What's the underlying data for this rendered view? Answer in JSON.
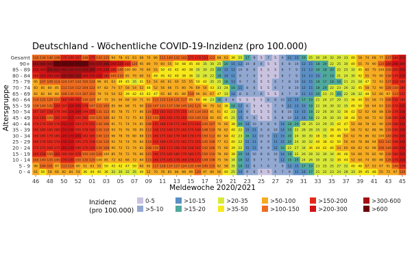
{
  "chart_data": {
    "type": "heatmap",
    "title": "Deutschland - Wöchentliche COVID-19-Inzidenz (pro 100.000)",
    "xlabel": "Meldewoche 2020/2021",
    "ylabel": "Altersgruppe",
    "rows": [
      "Gesamt",
      "90+",
      "85 - 89",
      "80 - 84",
      "75 - 79",
      "70 - 74",
      "65 - 69",
      "60 - 64",
      "55 - 59",
      "50 - 54",
      "45 - 49",
      "40 - 44",
      "35 - 39",
      "30 - 34",
      "25 - 29",
      "20 - 24",
      "15 - 19",
      "10 - 14",
      "5 - 9",
      "0 - 4"
    ],
    "weeks": [
      "46",
      "47",
      "48",
      "49",
      "50",
      "51",
      "52",
      "53",
      "01",
      "02",
      "03",
      "04",
      "05",
      "06",
      "07",
      "08",
      "09",
      "10",
      "11",
      "12",
      "13",
      "14",
      "15",
      "16",
      "17",
      "18",
      "19",
      "20",
      "21",
      "22",
      "23",
      "24",
      "25",
      "26",
      "27",
      "28",
      "29",
      "30",
      "31",
      "32",
      "33",
      "34",
      "35",
      "36",
      "37",
      "38",
      "39",
      "40",
      "41",
      "42",
      "43",
      "44",
      "45"
    ],
    "xticks": [
      "46",
      "48",
      "50",
      "52",
      "01",
      "03",
      "05",
      "07",
      "09",
      "11",
      "13",
      "15",
      "17",
      "19",
      "21",
      "23",
      "25",
      "27",
      "29",
      "31",
      "33",
      "35",
      "37",
      "39",
      "41",
      "43",
      "45"
    ],
    "profiles": {
      "Gesamt": [
        134,
        134,
        140,
        148,
        170,
        190,
        167,
        148,
        175,
        143,
        115,
        94,
        78,
        61,
        63,
        68,
        70,
        86,
        111,
        140,
        132,
        142,
        171,
        174,
        153,
        122,
        88,
        63,
        36,
        25,
        17,
        9,
        5,
        7,
        5,
        9,
        11,
        15,
        19,
        25,
        30,
        29,
        32,
        29,
        33,
        40,
        58,
        74,
        68,
        77,
        137,
        184,
        214
      ],
      "90+": [
        400,
        480,
        560,
        650,
        720,
        780,
        700,
        630,
        560,
        470,
        380,
        290,
        220,
        160,
        120,
        95,
        80,
        70,
        60,
        55,
        50,
        48,
        45,
        40,
        35,
        30,
        25,
        20,
        15,
        12,
        10,
        8,
        6,
        5,
        5,
        6,
        8,
        10,
        12,
        15,
        18,
        20,
        22,
        25,
        30,
        40,
        55,
        70,
        90,
        120,
        180,
        240,
        300
      ],
      "85 - 89": [
        250,
        300,
        350,
        420,
        480,
        520,
        470,
        430,
        380,
        300,
        240,
        180,
        140,
        100,
        80,
        70,
        60,
        55,
        50,
        45,
        42,
        40,
        38,
        35,
        30,
        25,
        20,
        15,
        12,
        10,
        8,
        6,
        5,
        5,
        5,
        6,
        7,
        9,
        11,
        13,
        16,
        18,
        20,
        22,
        25,
        32,
        45,
        60,
        75,
        100,
        150,
        200,
        250
      ],
      "80 - 84": [
        180,
        210,
        250,
        290,
        330,
        360,
        330,
        300,
        270,
        220,
        180,
        140,
        110,
        85,
        70,
        60,
        52,
        48,
        45,
        42,
        40,
        38,
        36,
        32,
        28,
        22,
        18,
        14,
        11,
        9,
        7,
        6,
        5,
        5,
        5,
        6,
        7,
        9,
        11,
        13,
        15,
        17,
        19,
        21,
        24,
        30,
        42,
        55,
        70,
        90,
        130,
        170,
        210
      ],
      "75 - 79": [
        95,
        107,
        109,
        114,
        124,
        147,
        134,
        150,
        124,
        96,
        81,
        63,
        49,
        45,
        35,
        41,
        53,
        54,
        66,
        61,
        60,
        55,
        55,
        50,
        42,
        35,
        25,
        18,
        13,
        9,
        7,
        6,
        5,
        5,
        6,
        7,
        8,
        10,
        12,
        15,
        18,
        17,
        18,
        16,
        21,
        21,
        28,
        47,
        72,
        93,
        137,
        154,
        184
      ],
      "70 - 74": [
        83,
        85,
        80,
        85,
        111,
        110,
        112,
        104,
        122,
        97,
        82,
        74,
        57,
        58,
        54,
        52,
        48,
        52,
        56,
        66,
        71,
        80,
        76,
        69,
        56,
        43,
        33,
        24,
        16,
        11,
        8,
        6,
        5,
        5,
        6,
        7,
        8,
        10,
        12,
        15,
        18,
        20,
        22,
        23,
        26,
        32,
        45,
        58,
        72,
        90,
        120,
        150,
        180
      ],
      "65 - 69": [
        82,
        82,
        84,
        84,
        108,
        130,
        114,
        107,
        103,
        79,
        74,
        54,
        52,
        39,
        42,
        43,
        41,
        47,
        65,
        80,
        81,
        88,
        110,
        96,
        81,
        67,
        47,
        33,
        14,
        8,
        6,
        7,
        6,
        5,
        5,
        6,
        7,
        9,
        11,
        13,
        20,
        23,
        21,
        20,
        22,
        28,
        32,
        48,
        52,
        66,
        97,
        123,
        151
      ],
      "60 - 64": [
        119,
        125,
        120,
        122,
        160,
        188,
        162,
        130,
        107,
        87,
        72,
        55,
        56,
        68,
        59,
        71,
        91,
        113,
        110,
        118,
        131,
        117,
        95,
        64,
        46,
        23,
        16,
        9,
        6,
        5,
        5,
        5,
        5,
        6,
        8,
        10,
        12,
        15,
        17,
        19,
        21,
        24,
        27,
        29,
        31,
        36,
        44,
        55,
        58,
        73,
        106,
        152,
        184
      ],
      "55 - 59": [
        139,
        140,
        142,
        154,
        197,
        226,
        205,
        178,
        147,
        122,
        103,
        85,
        66,
        68,
        71,
        90,
        116,
        147,
        133,
        137,
        138,
        140,
        142,
        121,
        96,
        70,
        52,
        38,
        18,
        12,
        6,
        5,
        4,
        5,
        7,
        9,
        11,
        13,
        15,
        18,
        22,
        26,
        30,
        32,
        35,
        40,
        50,
        58,
        64,
        83,
        125,
        174,
        225
      ],
      "50 - 54": [
        167,
        167,
        158,
        170,
        194,
        226,
        209,
        194,
        155,
        131,
        112,
        85,
        78,
        75,
        77,
        86,
        116,
        153,
        162,
        162,
        175,
        155,
        145,
        134,
        103,
        81,
        61,
        42,
        23,
        14,
        8,
        5,
        5,
        5,
        6,
        8,
        10,
        13,
        15,
        18,
        22,
        26,
        30,
        32,
        36,
        42,
        52,
        62,
        68,
        88,
        130,
        178,
        230
      ],
      "45 - 49": [
        154,
        160,
        150,
        160,
        190,
        215,
        200,
        185,
        150,
        125,
        105,
        82,
        75,
        72,
        75,
        85,
        115,
        150,
        160,
        165,
        170,
        160,
        150,
        140,
        110,
        85,
        65,
        45,
        25,
        15,
        9,
        6,
        5,
        5,
        6,
        8,
        10,
        12,
        14,
        18,
        22,
        26,
        30,
        34,
        38,
        44,
        55,
        66,
        72,
        92,
        138,
        185,
        238
      ],
      "40 - 44": [
        179,
        176,
        159,
        176,
        212,
        225,
        193,
        170,
        155,
        130,
        106,
        91,
        71,
        74,
        74,
        81,
        108,
        155,
        168,
        178,
        172,
        160,
        173,
        164,
        145,
        107,
        76,
        60,
        38,
        20,
        14,
        10,
        9,
        8,
        9,
        14,
        18,
        20,
        28,
        25,
        33,
        29,
        35,
        42,
        47,
        55,
        68,
        78,
        82,
        90,
        129,
        188,
        232
      ],
      "35 - 39": [
        185,
        180,
        165,
        180,
        215,
        230,
        200,
        178,
        160,
        135,
        110,
        93,
        75,
        76,
        78,
        85,
        112,
        158,
        172,
        180,
        175,
        165,
        175,
        168,
        148,
        110,
        78,
        62,
        40,
        22,
        15,
        11,
        9,
        8,
        10,
        14,
        19,
        22,
        28,
        28,
        35,
        32,
        38,
        45,
        50,
        58,
        72,
        82,
        88,
        96,
        135,
        195,
        240
      ],
      "30 - 34": [
        190,
        185,
        170,
        185,
        220,
        235,
        205,
        182,
        165,
        140,
        115,
        96,
        78,
        78,
        80,
        88,
        115,
        160,
        175,
        182,
        178,
        168,
        178,
        170,
        150,
        112,
        80,
        64,
        42,
        23,
        16,
        12,
        10,
        9,
        11,
        15,
        20,
        24,
        30,
        30,
        38,
        35,
        40,
        48,
        54,
        62,
        76,
        86,
        92,
        100,
        140,
        200,
        245
      ],
      "25 - 29": [
        180,
        176,
        162,
        176,
        210,
        225,
        195,
        175,
        158,
        134,
        110,
        92,
        74,
        74,
        76,
        84,
        110,
        154,
        168,
        176,
        172,
        162,
        172,
        165,
        145,
        108,
        77,
        61,
        40,
        22,
        15,
        11,
        9,
        9,
        11,
        15,
        20,
        24,
        30,
        32,
        40,
        38,
        42,
        50,
        56,
        64,
        78,
        88,
        94,
        102,
        142,
        198,
        240
      ],
      "20 - 24": [
        175,
        172,
        160,
        172,
        205,
        220,
        190,
        170,
        154,
        130,
        108,
        90,
        72,
        72,
        74,
        82,
        108,
        150,
        164,
        172,
        168,
        158,
        168,
        162,
        142,
        106,
        75,
        60,
        39,
        22,
        15,
        11,
        9,
        9,
        12,
        16,
        22,
        27,
        34,
        36,
        44,
        42,
        46,
        54,
        60,
        68,
        82,
        92,
        98,
        106,
        146,
        200,
        242
      ],
      "15 - 19": [
        160,
        158,
        150,
        160,
        190,
        200,
        170,
        150,
        140,
        120,
        100,
        85,
        70,
        72,
        76,
        86,
        115,
        160,
        175,
        185,
        180,
        170,
        180,
        175,
        150,
        110,
        78,
        60,
        38,
        20,
        14,
        10,
        8,
        8,
        10,
        14,
        18,
        22,
        26,
        28,
        32,
        30,
        34,
        40,
        46,
        54,
        66,
        76,
        82,
        90,
        130,
        180,
        220
      ],
      "10 - 14": [
        140,
        140,
        135,
        145,
        170,
        180,
        150,
        130,
        120,
        100,
        85,
        72,
        62,
        66,
        72,
        84,
        115,
        160,
        175,
        185,
        178,
        168,
        178,
        172,
        148,
        108,
        75,
        56,
        34,
        18,
        12,
        9,
        7,
        7,
        9,
        12,
        16,
        20,
        24,
        26,
        30,
        28,
        32,
        38,
        44,
        52,
        64,
        74,
        80,
        88,
        128,
        176,
        216
      ],
      "5 - 9": [
        96,
        104,
        101,
        97,
        113,
        114,
        80,
        51,
        63,
        55,
        50,
        43,
        42,
        47,
        50,
        60,
        85,
        117,
        128,
        137,
        127,
        124,
        135,
        148,
        145,
        115,
        82,
        58,
        35,
        18,
        11,
        8,
        7,
        6,
        7,
        9,
        12,
        15,
        17,
        19,
        23,
        25,
        25,
        27,
        32,
        40,
        48,
        57,
        53,
        67,
        91,
        140,
        176
      ],
      "0 - 4": [
        61,
        50,
        58,
        66,
        82,
        84,
        54,
        36,
        44,
        40,
        36,
        32,
        30,
        32,
        35,
        40,
        52,
        70,
        78,
        85,
        84,
        88,
        99,
        120,
        97,
        80,
        56,
        40,
        25,
        14,
        9,
        6,
        5,
        5,
        6,
        7,
        9,
        11,
        14,
        17,
        21,
        22,
        23,
        24,
        28,
        33,
        39,
        45,
        48,
        55,
        72,
        97,
        124
      ]
    },
    "legend": {
      "title": [
        "Inzidenz",
        "(pro 100.000)"
      ],
      "items": [
        {
          "label": "0-5",
          "color": "#c9c3e0"
        },
        {
          "label": ">5-10",
          "color": "#92a8d1"
        },
        {
          "label": ">10-15",
          "color": "#5b8fc4"
        },
        {
          "label": ">15-20",
          "color": "#4fa99c"
        },
        {
          "label": ">20-35",
          "color": "#d8e838"
        },
        {
          "label": ">35-50",
          "color": "#f7e81a"
        },
        {
          "label": ">50-100",
          "color": "#f6ab21"
        },
        {
          "label": ">100-150",
          "color": "#ee6c1f"
        },
        {
          "label": ">150-200",
          "color": "#e6281a"
        },
        {
          "label": ">200-300",
          "color": "#d31315"
        },
        {
          "label": ">300-600",
          "color": "#a40f14"
        },
        {
          "label": ">600",
          "color": "#6b0008"
        }
      ],
      "thresholds": [
        5,
        10,
        15,
        20,
        35,
        50,
        100,
        150,
        200,
        300,
        600
      ]
    }
  }
}
